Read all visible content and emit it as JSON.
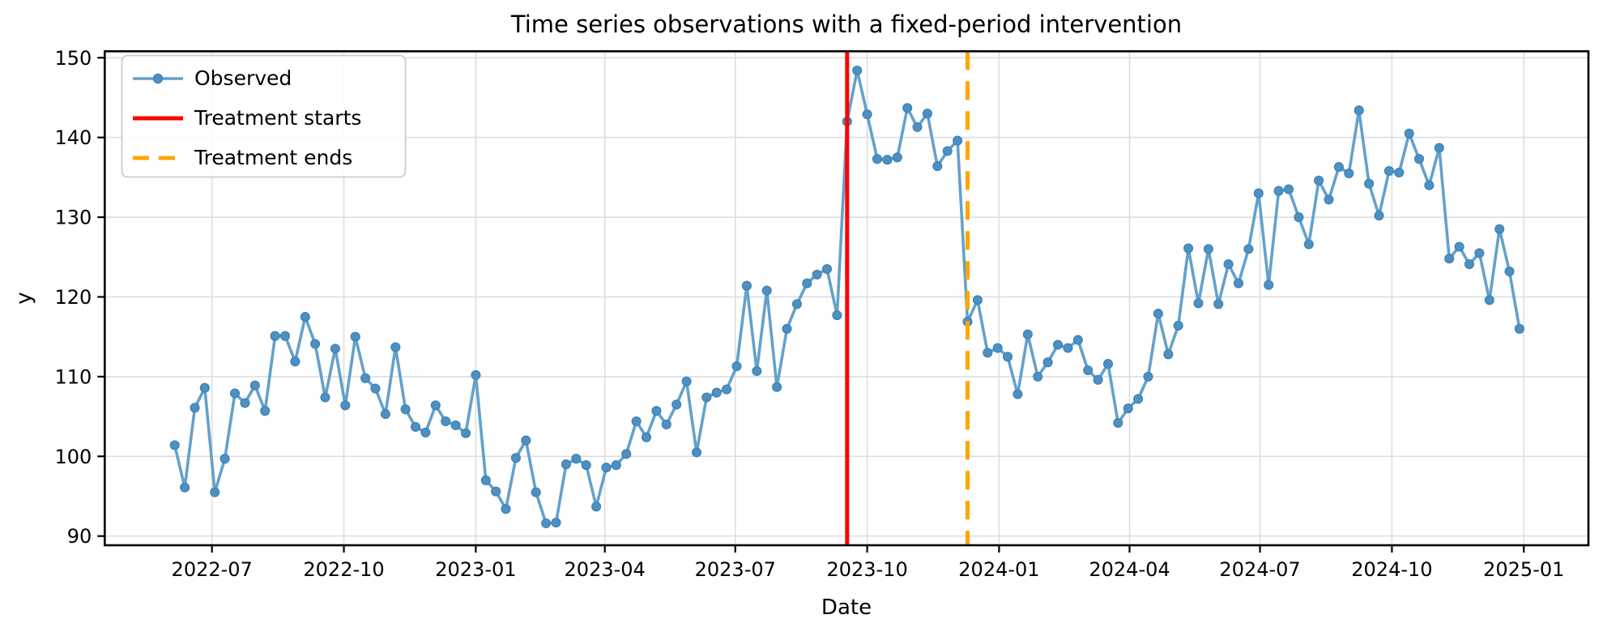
{
  "chart_data": {
    "type": "line",
    "title": "Time series observations with a fixed-period intervention",
    "xlabel": "Date",
    "ylabel": "y",
    "grid": true,
    "legend_position": "upper left",
    "ylim": [
      88.85,
      150.81
    ],
    "yticks": [
      90,
      100,
      110,
      120,
      130,
      140,
      150
    ],
    "xticks": [
      "2022-07",
      "2022-10",
      "2023-01",
      "2023-04",
      "2023-07",
      "2023-10",
      "2024-01",
      "2024-04",
      "2024-07",
      "2024-10",
      "2025-01"
    ],
    "series": [
      {
        "name": "Observed",
        "color": "#64a1cb",
        "marker_color": "#4e90c1",
        "marker": "circle",
        "start_date": "2022-06-05",
        "frequency_days": 7,
        "values": [
          101.4,
          96.1,
          106.1,
          108.6,
          95.5,
          99.7,
          107.9,
          106.7,
          108.9,
          105.7,
          115.1,
          115.1,
          111.9,
          117.5,
          114.1,
          107.4,
          113.5,
          106.4,
          115.0,
          109.8,
          108.5,
          105.3,
          113.7,
          105.9,
          103.7,
          103.0,
          106.4,
          104.4,
          103.9,
          102.9,
          110.2,
          97.0,
          95.6,
          93.4,
          99.8,
          102.0,
          95.5,
          91.6,
          91.7,
          99.0,
          99.7,
          98.9,
          93.7,
          98.6,
          98.9,
          100.3,
          104.4,
          102.4,
          105.7,
          104.0,
          106.5,
          109.4,
          100.5,
          107.4,
          108.0,
          108.4,
          111.3,
          121.4,
          110.7,
          120.8,
          108.7,
          116.0,
          119.1,
          121.7,
          122.8,
          123.5,
          117.7,
          142.0,
          148.4,
          142.9,
          137.3,
          137.2,
          137.5,
          143.7,
          141.3,
          143.0,
          136.4,
          138.3,
          139.6,
          116.9,
          119.6,
          113.0,
          113.6,
          112.5,
          107.8,
          115.3,
          110.0,
          111.8,
          114.0,
          113.6,
          114.6,
          110.8,
          109.6,
          111.6,
          104.2,
          106.0,
          107.2,
          110.0,
          117.9,
          112.8,
          116.4,
          126.1,
          119.2,
          126.0,
          119.1,
          124.1,
          121.7,
          126.0,
          133.0,
          121.5,
          133.3,
          133.5,
          130.0,
          126.6,
          134.6,
          132.2,
          136.3,
          135.5,
          143.4,
          134.2,
          130.2,
          135.8,
          135.6,
          140.5,
          137.3,
          134.0,
          138.7,
          124.8,
          126.3,
          124.1,
          125.5,
          119.6,
          128.5,
          123.2,
          116.0
        ]
      }
    ],
    "interventions": [
      {
        "label": "Treatment starts",
        "date": "2023-09-17",
        "color": "#ff0000",
        "style": "solid"
      },
      {
        "label": "Treatment ends",
        "date": "2023-12-10",
        "color": "#ffa500",
        "style": "dashed"
      }
    ]
  },
  "style_colors": {
    "grid": "#dcdcdc",
    "spine": "#000000",
    "legend_border": "#cccccc"
  }
}
